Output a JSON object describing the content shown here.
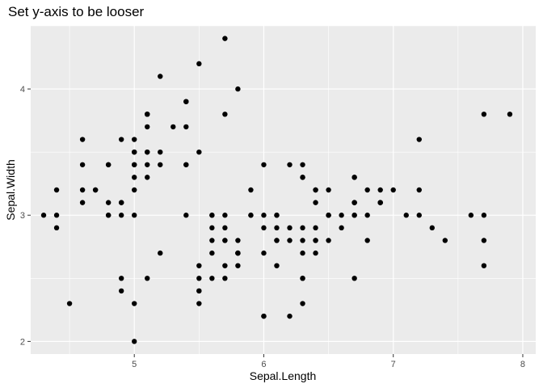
{
  "chart_data": {
    "type": "scatter",
    "title": "Set y-axis to be looser",
    "xlabel": "Sepal.Length",
    "ylabel": "Sepal.Width",
    "xlim": [
      4.2,
      8.1
    ],
    "ylim": [
      1.9,
      4.5
    ],
    "x_ticks": [
      5,
      6,
      7,
      8
    ],
    "x_tick_labels": [
      "5",
      "6",
      "7",
      "8"
    ],
    "y_ticks": [
      2,
      3,
      4
    ],
    "y_tick_labels": [
      "2",
      "3",
      "4"
    ],
    "grid": true,
    "panel_color": "#ebebeb",
    "grid_color": "#ffffff",
    "point_color": "#000000",
    "points": [
      [
        5.1,
        3.5
      ],
      [
        4.9,
        3.0
      ],
      [
        4.7,
        3.2
      ],
      [
        4.6,
        3.1
      ],
      [
        5.0,
        3.6
      ],
      [
        5.4,
        3.9
      ],
      [
        4.6,
        3.4
      ],
      [
        5.0,
        3.4
      ],
      [
        4.4,
        2.9
      ],
      [
        4.9,
        3.1
      ],
      [
        5.4,
        3.7
      ],
      [
        4.8,
        3.4
      ],
      [
        4.8,
        3.0
      ],
      [
        4.3,
        3.0
      ],
      [
        5.8,
        4.0
      ],
      [
        5.7,
        4.4
      ],
      [
        5.4,
        3.9
      ],
      [
        5.1,
        3.5
      ],
      [
        5.7,
        3.8
      ],
      [
        5.1,
        3.8
      ],
      [
        5.4,
        3.4
      ],
      [
        5.1,
        3.7
      ],
      [
        4.6,
        3.6
      ],
      [
        5.1,
        3.3
      ],
      [
        4.8,
        3.4
      ],
      [
        5.0,
        3.0
      ],
      [
        5.0,
        3.4
      ],
      [
        5.2,
        3.5
      ],
      [
        5.2,
        3.4
      ],
      [
        4.7,
        3.2
      ],
      [
        4.8,
        3.1
      ],
      [
        5.4,
        3.4
      ],
      [
        5.2,
        4.1
      ],
      [
        5.5,
        4.2
      ],
      [
        4.9,
        3.1
      ],
      [
        5.0,
        3.2
      ],
      [
        5.5,
        3.5
      ],
      [
        4.9,
        3.6
      ],
      [
        4.4,
        3.0
      ],
      [
        5.1,
        3.4
      ],
      [
        5.0,
        3.5
      ],
      [
        4.5,
        2.3
      ],
      [
        4.4,
        3.2
      ],
      [
        5.0,
        3.5
      ],
      [
        5.1,
        3.8
      ],
      [
        4.8,
        3.0
      ],
      [
        5.1,
        3.8
      ],
      [
        4.6,
        3.2
      ],
      [
        5.3,
        3.7
      ],
      [
        5.0,
        3.3
      ],
      [
        7.0,
        3.2
      ],
      [
        6.4,
        3.2
      ],
      [
        6.9,
        3.1
      ],
      [
        5.5,
        2.3
      ],
      [
        6.5,
        2.8
      ],
      [
        5.7,
        2.8
      ],
      [
        6.3,
        3.3
      ],
      [
        4.9,
        2.4
      ],
      [
        6.6,
        2.9
      ],
      [
        5.2,
        2.7
      ],
      [
        5.0,
        2.0
      ],
      [
        5.9,
        3.0
      ],
      [
        6.0,
        2.2
      ],
      [
        6.1,
        2.9
      ],
      [
        5.6,
        2.9
      ],
      [
        6.7,
        3.1
      ],
      [
        5.6,
        3.0
      ],
      [
        5.8,
        2.7
      ],
      [
        6.2,
        2.2
      ],
      [
        5.6,
        2.5
      ],
      [
        5.9,
        3.2
      ],
      [
        6.1,
        2.8
      ],
      [
        6.3,
        2.5
      ],
      [
        6.1,
        2.8
      ],
      [
        6.4,
        2.9
      ],
      [
        6.6,
        3.0
      ],
      [
        6.8,
        2.8
      ],
      [
        6.7,
        3.0
      ],
      [
        6.0,
        2.9
      ],
      [
        5.7,
        2.6
      ],
      [
        5.5,
        2.4
      ],
      [
        5.5,
        2.4
      ],
      [
        5.8,
        2.7
      ],
      [
        6.0,
        2.7
      ],
      [
        5.4,
        3.0
      ],
      [
        6.0,
        3.4
      ],
      [
        6.7,
        3.1
      ],
      [
        6.3,
        2.3
      ],
      [
        5.6,
        3.0
      ],
      [
        5.5,
        2.5
      ],
      [
        5.5,
        2.6
      ],
      [
        6.1,
        3.0
      ],
      [
        5.8,
        2.6
      ],
      [
        5.0,
        2.3
      ],
      [
        5.6,
        2.7
      ],
      [
        5.7,
        3.0
      ],
      [
        5.7,
        2.9
      ],
      [
        6.2,
        2.9
      ],
      [
        5.1,
        2.5
      ],
      [
        5.7,
        2.8
      ],
      [
        6.3,
        3.3
      ],
      [
        5.8,
        2.7
      ],
      [
        7.1,
        3.0
      ],
      [
        6.3,
        2.9
      ],
      [
        6.5,
        3.0
      ],
      [
        7.6,
        3.0
      ],
      [
        4.9,
        2.5
      ],
      [
        7.3,
        2.9
      ],
      [
        6.7,
        2.5
      ],
      [
        7.2,
        3.6
      ],
      [
        6.5,
        3.2
      ],
      [
        6.4,
        2.7
      ],
      [
        6.8,
        3.0
      ],
      [
        5.7,
        2.5
      ],
      [
        5.8,
        2.8
      ],
      [
        6.4,
        3.2
      ],
      [
        6.5,
        3.0
      ],
      [
        7.7,
        3.8
      ],
      [
        7.7,
        2.6
      ],
      [
        6.0,
        2.2
      ],
      [
        6.9,
        3.2
      ],
      [
        5.6,
        2.8
      ],
      [
        7.7,
        2.8
      ],
      [
        6.3,
        2.7
      ],
      [
        6.7,
        3.3
      ],
      [
        7.2,
        3.2
      ],
      [
        6.2,
        2.8
      ],
      [
        6.1,
        3.0
      ],
      [
        6.4,
        2.8
      ],
      [
        7.2,
        3.0
      ],
      [
        7.4,
        2.8
      ],
      [
        7.9,
        3.8
      ],
      [
        6.4,
        2.8
      ],
      [
        6.3,
        2.8
      ],
      [
        6.1,
        2.6
      ],
      [
        7.7,
        3.0
      ],
      [
        6.3,
        3.4
      ],
      [
        6.4,
        3.1
      ],
      [
        6.0,
        3.0
      ],
      [
        6.9,
        3.1
      ],
      [
        6.7,
        3.1
      ],
      [
        6.9,
        3.1
      ],
      [
        5.8,
        2.7
      ],
      [
        6.8,
        3.2
      ],
      [
        6.7,
        3.3
      ],
      [
        6.7,
        3.0
      ],
      [
        6.3,
        2.5
      ],
      [
        6.5,
        3.0
      ],
      [
        6.2,
        3.4
      ],
      [
        5.9,
        3.0
      ]
    ]
  }
}
